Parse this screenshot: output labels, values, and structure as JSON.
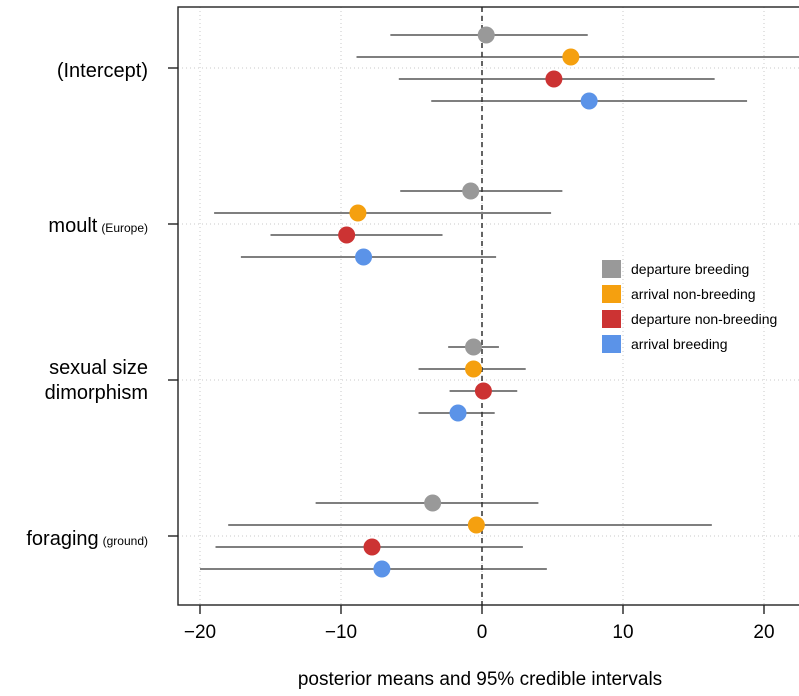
{
  "chart_data": {
    "type": "forest",
    "xlabel": "posterior means and 95% credible intervals",
    "xlim": [
      -22,
      22.5
    ],
    "xticks": [
      -20,
      -10,
      0,
      10,
      20
    ],
    "xtick_labels": [
      "−20",
      "−10",
      "0",
      "10",
      "20"
    ],
    "reference_line": 0,
    "grid": true,
    "legend_position": "right",
    "categories": [
      {
        "main": "(Intercept)",
        "sub": ""
      },
      {
        "main": "moult",
        "sub": "(Europe)"
      },
      {
        "main": "sexual size",
        "main2": "dimorphism",
        "sub": ""
      },
      {
        "main": "foraging",
        "sub": "(ground)"
      }
    ],
    "series": [
      {
        "name": "departure breeding",
        "color": "#999999",
        "means": [
          0.3,
          -0.8,
          -0.6,
          -3.5
        ],
        "lower": [
          -6.5,
          -5.8,
          -2.4,
          -11.8
        ],
        "upper": [
          7.5,
          5.7,
          1.2,
          4.0
        ]
      },
      {
        "name": "arrival non-breeding",
        "color": "#f5a00f",
        "means": [
          6.3,
          -8.8,
          -0.6,
          -0.4
        ],
        "lower": [
          -8.9,
          -19.0,
          -4.5,
          -18.0
        ],
        "upper": [
          22.5,
          4.9,
          3.1,
          16.3
        ]
      },
      {
        "name": "departure non-breeding",
        "color": "#cc3333",
        "means": [
          5.1,
          -9.6,
          0.1,
          -7.8
        ],
        "lower": [
          -5.9,
          -15.0,
          -2.3,
          -18.9
        ],
        "upper": [
          16.5,
          -2.8,
          2.5,
          2.9
        ]
      },
      {
        "name": "arrival breeding",
        "color": "#5b93e8",
        "means": [
          7.6,
          -8.4,
          -1.7,
          -7.1
        ],
        "lower": [
          -3.6,
          -17.1,
          -4.5,
          -20.0
        ],
        "upper": [
          18.8,
          1.0,
          0.9,
          4.6
        ]
      }
    ]
  }
}
